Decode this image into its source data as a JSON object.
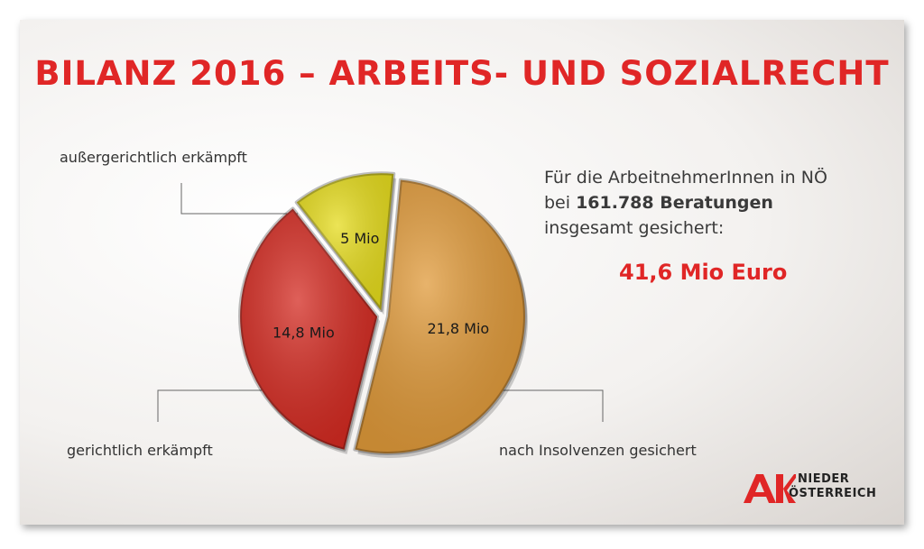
{
  "header": {
    "title": "BILANZ 2016 – ARBEITS- UND SOZIALRECHT"
  },
  "info": {
    "line1": "Für die ArbeitnehmerInnen in NÖ",
    "line2_prefix": "bei ",
    "line2_bold": "161.788 Beratungen",
    "line3": "insgesamt gesichert:",
    "total": "41,6 Mio Euro"
  },
  "chart_data": {
    "type": "pie",
    "unit": "Mio",
    "slices": [
      {
        "label": "außergerichtlich erkämpft",
        "value": 5,
        "value_label": "5 Mio",
        "color": "#e6dc1e"
      },
      {
        "label": "nach Insolvenzen gesichert",
        "value": 21.8,
        "value_label": "21,8 Mio",
        "color": "#e09a3a"
      },
      {
        "label": "gerichtlich erkämpft",
        "value": 14.8,
        "value_label": "14,8 Mio",
        "color": "#d42b22"
      }
    ]
  },
  "logo": {
    "mark": "AK",
    "line1": "NIEDER",
    "line2": "ÖSTERREICH",
    "color": "#e02626"
  }
}
